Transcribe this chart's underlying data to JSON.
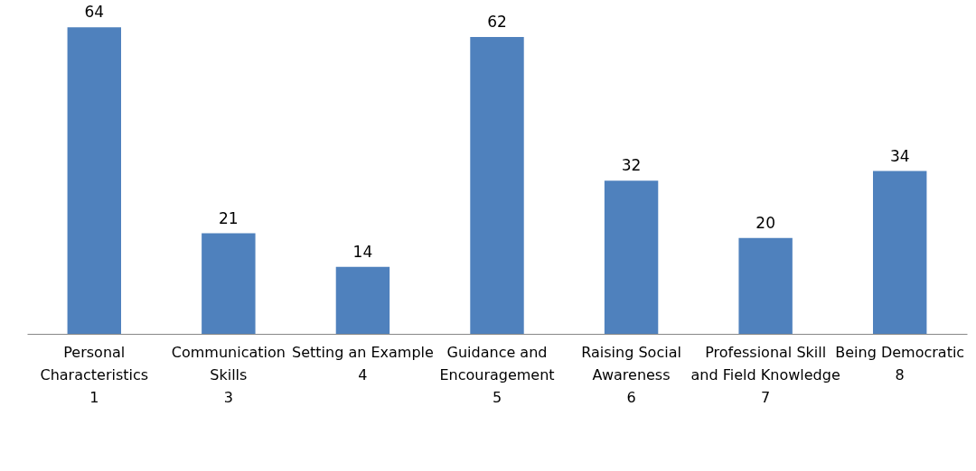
{
  "chart_data": {
    "type": "bar",
    "categories": [
      "Personal Characteristics",
      "Communication Skills",
      "Setting an Example",
      "Guidance and Encouragement",
      "Raising Social Awareness",
      "Professional Skill and Field Knowledge",
      "Being Democratic"
    ],
    "values": [
      64,
      21,
      14,
      62,
      32,
      20,
      34
    ],
    "color": "#4f81bd",
    "data_labels": true,
    "grid": false,
    "annotations": [
      "1",
      "3",
      "4",
      "5",
      "6",
      "7",
      "8"
    ]
  }
}
